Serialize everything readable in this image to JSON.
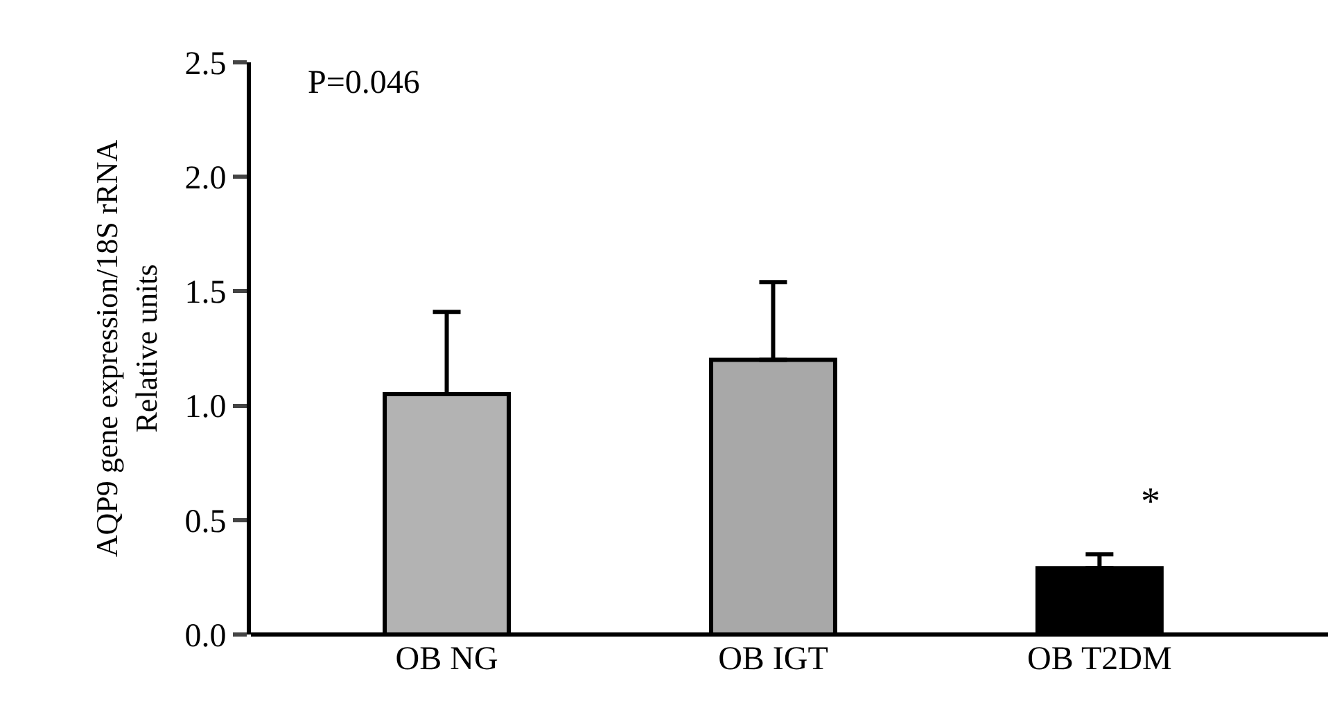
{
  "chart_data": {
    "type": "bar",
    "ylabel": "AQP9 gene expression/18S rRNA\nRelative units",
    "categories": [
      "OB NG",
      "OB IGT",
      "OB T2DM"
    ],
    "values": [
      1.05,
      1.2,
      0.29
    ],
    "colors": [
      "#b3b3b3",
      "#a8a8a8",
      "#000000"
    ],
    "errors": [
      [
        1.05,
        1.41
      ],
      [
        1.2,
        1.54
      ],
      [
        0.29,
        0.35
      ]
    ],
    "ylim": [
      0,
      2.5
    ],
    "yticks": [
      {
        "value": 0,
        "label": "0.0"
      },
      {
        "value": 0.5,
        "label": "0.5"
      },
      {
        "value": 1,
        "label": "1.0"
      },
      {
        "value": 1.5,
        "label": "1.5"
      },
      {
        "value": 2,
        "label": "2.0"
      },
      {
        "value": 2.5,
        "label": "2.5"
      }
    ],
    "grid": false,
    "legend": false,
    "annotations": [
      "P=0.046",
      "*"
    ]
  }
}
